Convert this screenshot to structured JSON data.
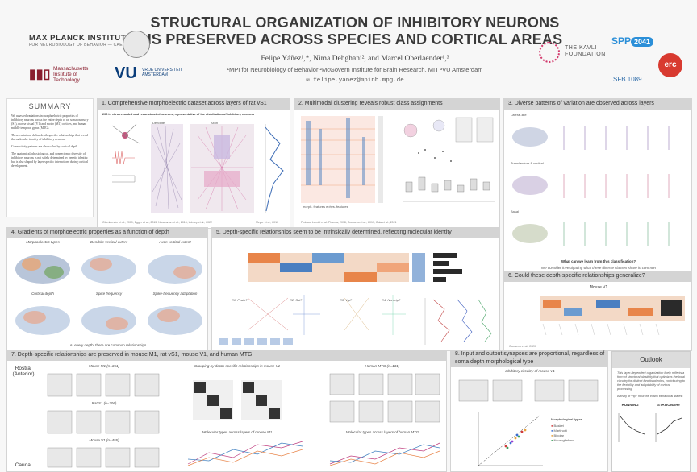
{
  "header": {
    "title_line1": "STRUCTURAL ORGANIZATION OF INHIBITORY NEURONS",
    "title_line2": "IS PRESERVED ACROSS SPECIES AND CORTICAL AREAS",
    "authors": "Felipe Yáñez¹,*, Nima Dehghani², and Marcel Oberlaender¹,³",
    "affiliations": "¹MPI for Neurobiology of Behavior ²McGovern Institute for Brain Research, MIT ³VU Amsterdam",
    "email": "felipe.yanez@mpinb.mpg.de"
  },
  "logos": {
    "mpi_name": "MAX PLANCK INSTITUTE",
    "mpi_sub": "FOR NEUROBIOLOGY OF BEHAVIOR — CAESAR",
    "mit_text": "Massachusetts Institute of Technology",
    "vu_text": "VRIJE UNIVERSITEIT AMSTERDAM",
    "kavli_text": "THE KAVLI FOUNDATION",
    "spp_text": "SPP",
    "spp_number": "2041",
    "erc_text": "erc",
    "sfb_text": "SFB 1089"
  },
  "summary": {
    "title": "SUMMARY",
    "p1": "We assessed variations in morphoelectric properties of inhibitory neurons across the entire depth of rat somatosensory (S1), mouse visual (V1) and motor (M1) cortices, and human middle temporal gyrus (MTG).",
    "p2": "These variations define depth-specific relationships that reveal the molecular identity of inhibitory neurons.",
    "p3": "Connectivity patterns are also scaled by cortical depth.",
    "p4": "The anatomical, physiological, and connectomic diversity of inhibitory neurons is not solely determined by genetic identity, but is also shaped by layer-specific interactions during cortical development."
  },
  "panels": {
    "p1": "1.  Comprehensive morphoelectric dataset across layers of rat vS1",
    "p2": "2.  Multimodal clustering reveals robust class assignments",
    "p3": "3.  Diverse patterns of variation are observed across layers",
    "p4": "4.  Gradients of morphoelectric properties as a function of depth",
    "p5": "5.  Depth-specific relationships seem to be intrinsically determined, reflecting molecular identity",
    "p6": "6.  Could these depth-specific relationships generalize?",
    "p7": "7.  Depth-specific relationships are preserved in mouse M1, rat vS1, mouse V1, and human MTG",
    "p8": "8.  Input and output synapses are proportional, regardless of soma depth morphological type",
    "outlook": "Outlook"
  },
  "p1_content": {
    "subtitle": "206 in vitro recorded and reconstructed neurons, representative of the distribution of inhibitory neurons",
    "label_dendrite": "Dendrite",
    "label_axon": "Axon",
    "cite_left": "Oberlaender et al., 2009; Egger et al., 2015; Narayanan et al., 2015; Udvary et al., 2022",
    "cite_right": "Meyer et al., 2010"
  },
  "p2_content": {
    "xlabel": "morph. features   ephys. features",
    "cite": "Pedraza Lamiel et al. Pharma, 2018; Gouwens et al., 2019; Gala et al., 2021"
  },
  "p3_content": {
    "row1": "Lateral-like",
    "row2": "Translaminar & vertical",
    "row3": "Basal",
    "q1": "What can we learn from this classification?",
    "q2": "We consider investigating what these diverse classes share in common"
  },
  "p4_content": {
    "t1": "Morphoelectric types",
    "t2": "Dendrite vertical extent",
    "t3": "Axon vertical extent",
    "t4": "Cortical depth",
    "t5": "Spike frequency",
    "t6": "Spike-frequency adaptation",
    "footer": "At every depth, there are common relationships"
  },
  "p5_content": {
    "r1": "R1: Pvalb?",
    "r2": "R2: Sst?",
    "r3": "R3: Vip?",
    "r4": "R4: Non-vip?"
  },
  "p6_content": {
    "title": "Mouse V1",
    "cite": "Gouwens et al., 2020"
  },
  "p7_content": {
    "axis_top": "Rostral (Anterior)",
    "axis_bottom": "Caudal",
    "mouse_m1": "Mouse M1 (n=351)",
    "rat_s1": "Rat S1 (n=206)",
    "mouse_v1": "Mouse V1 (n=455)",
    "grouping": "Grouping by depth-specific relationships in mouse V1",
    "human_mtg": "Human MTG (n=131)",
    "mol_m1": "Molecular types across layers of mouse M1",
    "mol_mtg": "Molecular types across layers of human MTG"
  },
  "p8_content": {
    "title": "Inhibitory circuitry of mouse V1",
    "legend_title": "Morphological types",
    "legend": [
      "Basket",
      "Martinotti",
      "Bipolar",
      "Neurogliaform"
    ]
  },
  "outlook": {
    "text": "This layer-dependent organization likely reflects a form of structural plasticity that optimizes the local circuitry for distinct functional roles, contributing to the flexibility and adaptability of cortical processing.",
    "activity": "Activity of Vip+ neurons in two behavioral states:",
    "running": "RUNNING",
    "stationary": "STATIONARY"
  },
  "colors": {
    "panel_head": "#d4d4d4",
    "accent_orange": "#e8854a",
    "accent_blue": "#4a7fc1",
    "title": "#3a3a3a"
  }
}
